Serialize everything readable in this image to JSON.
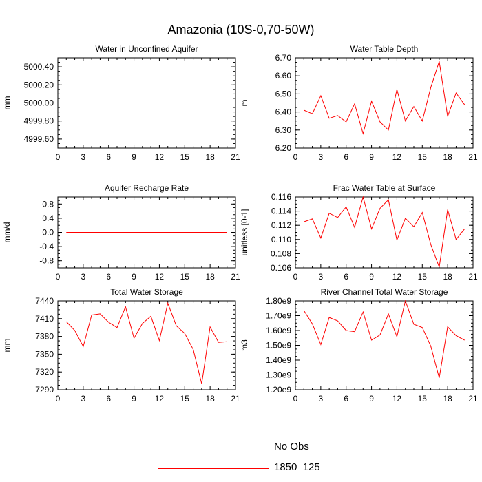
{
  "figure": {
    "title": "Amazonia (10S-0,70-50W)"
  },
  "legend": {
    "items": [
      {
        "label": "No Obs",
        "color": "#1f3fbf",
        "dash": true
      },
      {
        "label": "1850_125",
        "color": "#ff0000",
        "dash": false
      }
    ]
  },
  "chart_data": [
    {
      "type": "line",
      "title": "Water in Unconfined Aquifer",
      "ylabel": "mm",
      "xlabel": "",
      "xlim": [
        0,
        21
      ],
      "ylim": [
        4999.5,
        5000.5
      ],
      "xticks": [
        0,
        3,
        6,
        9,
        12,
        15,
        18,
        21
      ],
      "yticks": [
        4999.6,
        4999.8,
        5000.0,
        5000.2,
        5000.4
      ],
      "ytick_labels": [
        "4999.60",
        "4999.80",
        "5000.00",
        "5000.20",
        "5000.40"
      ],
      "series": [
        {
          "name": "1850_125",
          "color": "#ff0000",
          "x": [
            1,
            2,
            3,
            4,
            5,
            6,
            7,
            8,
            9,
            10,
            11,
            12,
            13,
            14,
            15,
            16,
            17,
            18,
            19,
            20
          ],
          "values": [
            5000,
            5000,
            5000,
            5000,
            5000,
            5000,
            5000,
            5000,
            5000,
            5000,
            5000,
            5000,
            5000,
            5000,
            5000,
            5000,
            5000,
            5000,
            5000,
            5000
          ]
        }
      ]
    },
    {
      "type": "line",
      "title": "Water Table Depth",
      "ylabel": "m",
      "xlabel": "",
      "xlim": [
        0,
        21
      ],
      "ylim": [
        6.2,
        6.7
      ],
      "xticks": [
        0,
        3,
        6,
        9,
        12,
        15,
        18,
        21
      ],
      "yticks": [
        6.2,
        6.3,
        6.4,
        6.5,
        6.6,
        6.7
      ],
      "ytick_labels": [
        "6.20",
        "6.30",
        "6.40",
        "6.50",
        "6.60",
        "6.70"
      ],
      "series": [
        {
          "name": "1850_125",
          "color": "#ff0000",
          "x": [
            1,
            2,
            3,
            4,
            5,
            6,
            7,
            8,
            9,
            10,
            11,
            12,
            13,
            14,
            15,
            16,
            17,
            18,
            19,
            20
          ],
          "values": [
            6.41,
            6.39,
            6.49,
            6.365,
            6.38,
            6.345,
            6.445,
            6.28,
            6.46,
            6.345,
            6.3,
            6.525,
            6.35,
            6.43,
            6.35,
            6.535,
            6.68,
            6.375,
            6.505,
            6.44
          ]
        }
      ]
    },
    {
      "type": "line",
      "title": "Aquifer Recharge Rate",
      "ylabel": "mm/d",
      "xlabel": "",
      "xlim": [
        0,
        21
      ],
      "ylim": [
        -1.0,
        1.0
      ],
      "xticks": [
        0,
        3,
        6,
        9,
        12,
        15,
        18,
        21
      ],
      "yticks": [
        -0.8,
        -0.4,
        0.0,
        0.4,
        0.8
      ],
      "ytick_labels": [
        "-0.8",
        "-0.4",
        "0.0",
        "0.4",
        "0.8"
      ],
      "series": [
        {
          "name": "1850_125",
          "color": "#ff0000",
          "x": [
            1,
            2,
            3,
            4,
            5,
            6,
            7,
            8,
            9,
            10,
            11,
            12,
            13,
            14,
            15,
            16,
            17,
            18,
            19,
            20
          ],
          "values": [
            0,
            0,
            0,
            0,
            0,
            0,
            0,
            0,
            0,
            0,
            0,
            0,
            0,
            0,
            0,
            0,
            0,
            0,
            0,
            0
          ]
        }
      ]
    },
    {
      "type": "line",
      "title": "Frac Water Table at Surface",
      "ylabel": "unitless [0-1]",
      "xlabel": "",
      "xlim": [
        0,
        21
      ],
      "ylim": [
        0.106,
        0.116
      ],
      "xticks": [
        0,
        3,
        6,
        9,
        12,
        15,
        18,
        21
      ],
      "yticks": [
        0.106,
        0.108,
        0.11,
        0.112,
        0.114,
        0.116
      ],
      "ytick_labels": [
        "0.106",
        "0.108",
        "0.110",
        "0.112",
        "0.114",
        "0.116"
      ],
      "series": [
        {
          "name": "1850_125",
          "color": "#ff0000",
          "x": [
            1,
            2,
            3,
            4,
            5,
            6,
            7,
            8,
            9,
            10,
            11,
            12,
            13,
            14,
            15,
            16,
            17,
            18,
            19,
            20
          ],
          "values": [
            0.1125,
            0.1129,
            0.1102,
            0.1137,
            0.1131,
            0.1146,
            0.1117,
            0.116,
            0.1115,
            0.1144,
            0.1156,
            0.1099,
            0.113,
            0.1118,
            0.1138,
            0.1093,
            0.1061,
            0.1142,
            0.11,
            0.1115
          ]
        }
      ]
    },
    {
      "type": "line",
      "title": "Total Water Storage",
      "ylabel": "mm",
      "xlabel": "",
      "xlim": [
        0,
        21
      ],
      "ylim": [
        7290,
        7440
      ],
      "xticks": [
        0,
        3,
        6,
        9,
        12,
        15,
        18,
        21
      ],
      "yticks": [
        7290,
        7320,
        7350,
        7380,
        7410,
        7440
      ],
      "ytick_labels": [
        "7290",
        "7320",
        "7350",
        "7380",
        "7410",
        "7440"
      ],
      "series": [
        {
          "name": "1850_125",
          "color": "#ff0000",
          "x": [
            1,
            2,
            3,
            4,
            5,
            6,
            7,
            8,
            9,
            10,
            11,
            12,
            13,
            14,
            15,
            16,
            17,
            18,
            19,
            20
          ],
          "values": [
            7405,
            7390,
            7363,
            7416,
            7418,
            7404,
            7395,
            7430,
            7377,
            7402,
            7414,
            7373,
            7436,
            7398,
            7385,
            7358,
            7300,
            7396,
            7370,
            7371
          ]
        }
      ]
    },
    {
      "type": "line",
      "title": "River Channel Total Water Storage",
      "ylabel": "m3",
      "xlabel": "",
      "xlim": [
        0,
        21
      ],
      "ylim": [
        1200000000.0,
        1800000000.0
      ],
      "xticks": [
        0,
        3,
        6,
        9,
        12,
        15,
        18,
        21
      ],
      "yticks": [
        1200000000.0,
        1300000000.0,
        1400000000.0,
        1500000000.0,
        1600000000.0,
        1700000000.0,
        1800000000.0
      ],
      "ytick_labels": [
        "1.20e9",
        "1.30e9",
        "1.40e9",
        "1.50e9",
        "1.60e9",
        "1.70e9",
        "1.80e9"
      ],
      "series": [
        {
          "name": "1850_125",
          "color": "#ff0000",
          "x": [
            1,
            2,
            3,
            4,
            5,
            6,
            7,
            8,
            9,
            10,
            11,
            12,
            13,
            14,
            15,
            16,
            17,
            18,
            19,
            20
          ],
          "values": [
            1735000000.0,
            1645000000.0,
            1505000000.0,
            1688000000.0,
            1665000000.0,
            1600000000.0,
            1592000000.0,
            1725000000.0,
            1535000000.0,
            1570000000.0,
            1712000000.0,
            1558000000.0,
            1800000000.0,
            1642000000.0,
            1620000000.0,
            1495000000.0,
            1280000000.0,
            1625000000.0,
            1565000000.0,
            1535000000.0
          ]
        }
      ]
    }
  ]
}
